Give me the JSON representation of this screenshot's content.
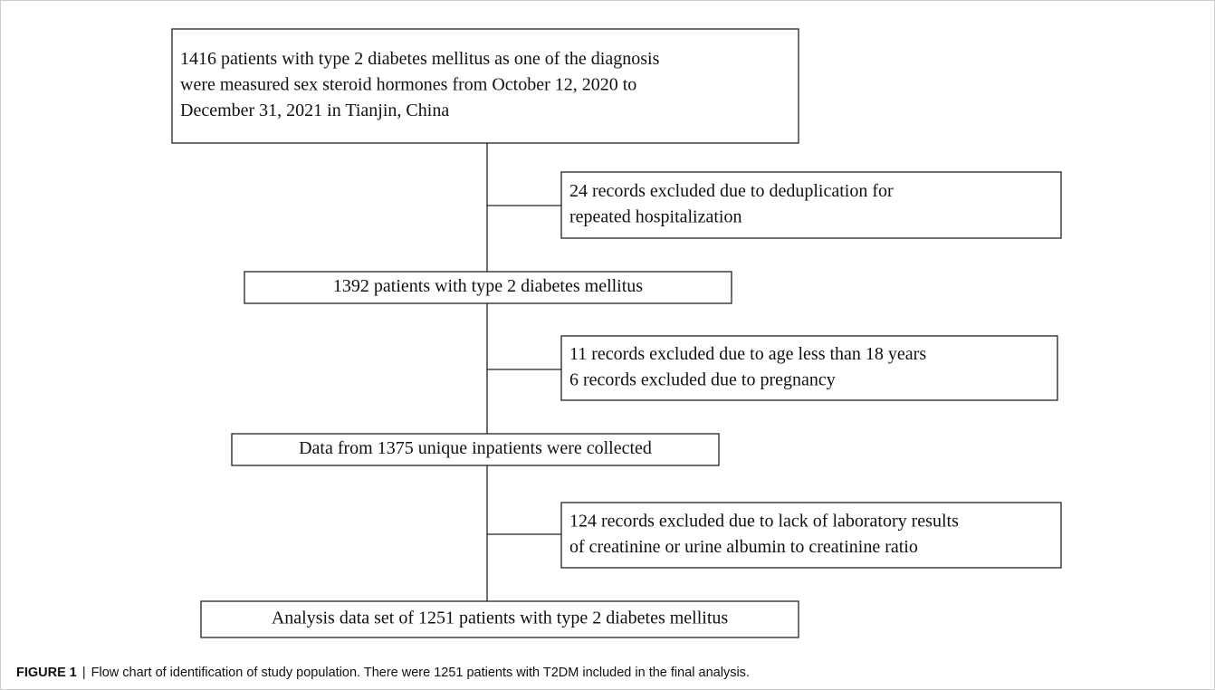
{
  "nodes": [
    {
      "lines": [
        "1416 patients with type 2 diabetes mellitus as one of the diagnosis",
        "were measured sex steroid hormones from October 12, 2020 to",
        "December 31, 2021 in Tianjin,  China"
      ]
    },
    {
      "lines": [
        "24 records excluded due to deduplication for",
        "repeated hospitalization"
      ]
    },
    {
      "lines": [
        "1392 patients with type 2 diabetes mellitus"
      ]
    },
    {
      "lines": [
        "11 records excluded due to age less than 18 years",
        "6 records excluded due to pregnancy"
      ]
    },
    {
      "lines": [
        "Data from 1375 unique inpatients were collected"
      ]
    },
    {
      "lines": [
        "124 records excluded due to lack of laboratory results",
        "of creatinine  or urine albumin to creatinine ratio"
      ]
    },
    {
      "lines": [
        "Analysis data set of 1251 patients with type 2 diabetes mellitus"
      ]
    }
  ],
  "caption": {
    "label": "FIGURE 1",
    "separator": "|",
    "text": "Flow chart of identification of study population. There were 1251 patients with T2DM included in the final analysis."
  }
}
